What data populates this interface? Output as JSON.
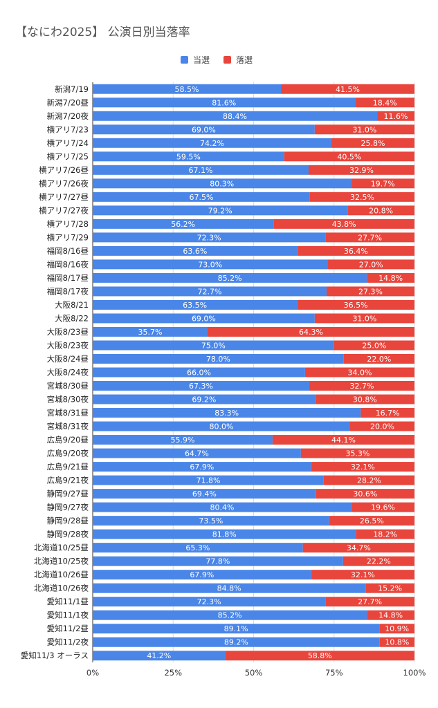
{
  "chart_data": {
    "type": "bar",
    "orientation": "horizontal",
    "stacked": "percent",
    "title": "【なにわ2025】 公演日別当落率",
    "legend_position": "top",
    "categories": [
      "新潟7/19",
      "新潟7/20昼",
      "新潟7/20夜",
      "横アリ7/23",
      "横アリ7/24",
      "横アリ7/25",
      "横アリ7/26昼",
      "横アリ7/26夜",
      "横アリ7/27昼",
      "横アリ7/27夜",
      "横アリ7/28",
      "横アリ7/29",
      "福岡8/16昼",
      "福岡8/16夜",
      "福岡8/17昼",
      "福岡8/17夜",
      "大阪8/21",
      "大阪8/22",
      "大阪8/23昼",
      "大阪8/23夜",
      "大阪8/24昼",
      "大阪8/24夜",
      "宮城8/30昼",
      "宮城8/30夜",
      "宮城8/31昼",
      "宮城8/31夜",
      "広島9/20昼",
      "広島9/20夜",
      "広島9/21昼",
      "広島9/21夜",
      "静岡9/27昼",
      "静岡9/27夜",
      "静岡9/28昼",
      "静岡9/28夜",
      "北海道10/25昼",
      "北海道10/25夜",
      "北海道10/26昼",
      "北海道10/26夜",
      "愛知11/1昼",
      "愛知11/1夜",
      "愛知11/2昼",
      "愛知11/2夜",
      "愛知11/3 オーラス"
    ],
    "series": [
      {
        "name": "当選",
        "color": "#4a86e8",
        "values": [
          58.5,
          81.6,
          88.4,
          69.0,
          74.2,
          59.5,
          67.1,
          80.3,
          67.5,
          79.2,
          56.2,
          72.3,
          63.6,
          73.0,
          85.2,
          72.7,
          63.5,
          69.0,
          35.7,
          75.0,
          78.0,
          66.0,
          67.3,
          69.2,
          83.3,
          80.0,
          55.9,
          64.7,
          67.9,
          71.8,
          69.4,
          80.4,
          73.5,
          81.8,
          65.3,
          77.8,
          67.9,
          84.8,
          72.3,
          85.2,
          89.1,
          89.2,
          41.2
        ],
        "labels": [
          "58.5%",
          "81.6%",
          "88.4%",
          "69.0%",
          "74.2%",
          "59.5%",
          "67.1%",
          "80.3%",
          "67.5%",
          "79.2%",
          "56.2%",
          "72.3%",
          "63.6%",
          "73.0%",
          "85.2%",
          "72.7%",
          "63.5%",
          "69.0%",
          "35.7%",
          "75.0%",
          "78.0%",
          "66.0%",
          "67.3%",
          "69.2%",
          "83.3%",
          "80.0%",
          "55.9%",
          "64.7%",
          "67.9%",
          "71.8%",
          "69.4%",
          "80.4%",
          "73.5%",
          "81.8%",
          "65.3%",
          "77.8%",
          "67.9%",
          "84.8%",
          "72.3%",
          "85.2%",
          "89.1%",
          "89.2%",
          "41.2%"
        ]
      },
      {
        "name": "落選",
        "color": "#e8453c",
        "values": [
          41.5,
          18.4,
          11.6,
          31.0,
          25.8,
          40.5,
          32.9,
          19.7,
          32.5,
          20.8,
          43.8,
          27.7,
          36.4,
          27.0,
          14.8,
          27.3,
          36.5,
          31.0,
          64.3,
          25.0,
          22.0,
          34.0,
          32.7,
          30.8,
          16.7,
          20.0,
          44.1,
          35.3,
          32.1,
          28.2,
          30.6,
          19.6,
          26.5,
          18.2,
          34.7,
          22.2,
          32.1,
          15.2,
          27.7,
          14.8,
          10.9,
          10.8,
          58.8
        ],
        "labels": [
          "41.5%",
          "18.4%",
          "11.6%",
          "31.0%",
          "25.8%",
          "40.5%",
          "32.9%",
          "19.7%",
          "32.5%",
          "20.8%",
          "43.8%",
          "27.7%",
          "36.4%",
          "27.0%",
          "14.8%",
          "27.3%",
          "36.5%",
          "31.0%",
          "64.3%",
          "25.0%",
          "22.0%",
          "34.0%",
          "32.7%",
          "30.8%",
          "16.7%",
          "20.0%",
          "44.1%",
          "35.3%",
          "32.1%",
          "28.2%",
          "30.6%",
          "19.6%",
          "26.5%",
          "18.2%",
          "34.7%",
          "22.2%",
          "32.1%",
          "15.2%",
          "27.7%",
          "14.8%",
          "10.9%",
          "10.8%",
          "58.8%"
        ]
      }
    ],
    "xlim": [
      0,
      100
    ],
    "x_ticks": [
      0,
      25,
      50,
      75,
      100
    ],
    "x_tick_labels": [
      "0%",
      "25%",
      "50%",
      "75%",
      "100%"
    ],
    "grid": true
  }
}
